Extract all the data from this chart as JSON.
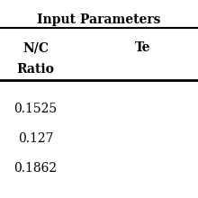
{
  "title": "Input Parameters",
  "col1_header_line1": "N/C",
  "col1_header_line2": "Ratio",
  "col2_header_line1": "Te",
  "col2_header_line2": "",
  "col1_values": [
    "0.1525",
    "0.127",
    "0.1862"
  ],
  "col2_values": [
    "",
    "",
    ""
  ],
  "background_color": "#ffffff",
  "header_fontsize": 10,
  "cell_fontsize": 10,
  "title_fontsize": 10
}
